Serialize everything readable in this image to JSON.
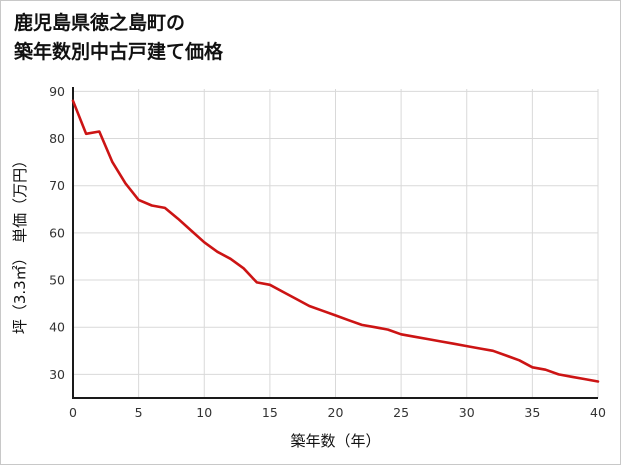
{
  "title": {
    "line1": "鹿児島県徳之島町の",
    "line2": "築年数別中古戸建て価格"
  },
  "chart_data": {
    "type": "line",
    "x": [
      0,
      1,
      2,
      3,
      4,
      5,
      6,
      7,
      8,
      9,
      10,
      11,
      12,
      13,
      14,
      15,
      16,
      17,
      18,
      19,
      20,
      21,
      22,
      23,
      24,
      25,
      26,
      27,
      28,
      29,
      30,
      31,
      32,
      33,
      34,
      35,
      36,
      37,
      38,
      39,
      40
    ],
    "values": [
      88,
      81,
      81.5,
      75,
      70.5,
      67,
      65.8,
      65.3,
      63,
      60.5,
      58,
      56,
      54.5,
      52.5,
      49.5,
      49,
      47.5,
      46,
      44.5,
      43.5,
      42.5,
      41.5,
      40.5,
      40,
      39.5,
      38.5,
      38,
      37.5,
      37,
      36.5,
      36,
      35.5,
      35,
      34,
      33,
      31.5,
      31,
      30,
      29.5,
      29,
      28.5
    ],
    "title": "鹿児島県徳之島町の 築年数別中古戸建て価格",
    "xlabel": "築年数（年）",
    "ylabel": "坪（3.3㎡）　単価（万円）",
    "xlim": [
      0,
      40
    ],
    "ylim": [
      25,
      90.5
    ],
    "xticks": [
      0,
      5,
      10,
      15,
      20,
      25,
      30,
      35,
      40
    ],
    "yticks": [
      30,
      40,
      50,
      60,
      70,
      80,
      90
    ],
    "grid": true,
    "legend": "none",
    "colors": {
      "line": "#cc1414",
      "grid": "#d9d9d9",
      "axis": "#1a1a1a",
      "tick_text": "#333333",
      "frame_border": "#c8c8c8"
    }
  }
}
